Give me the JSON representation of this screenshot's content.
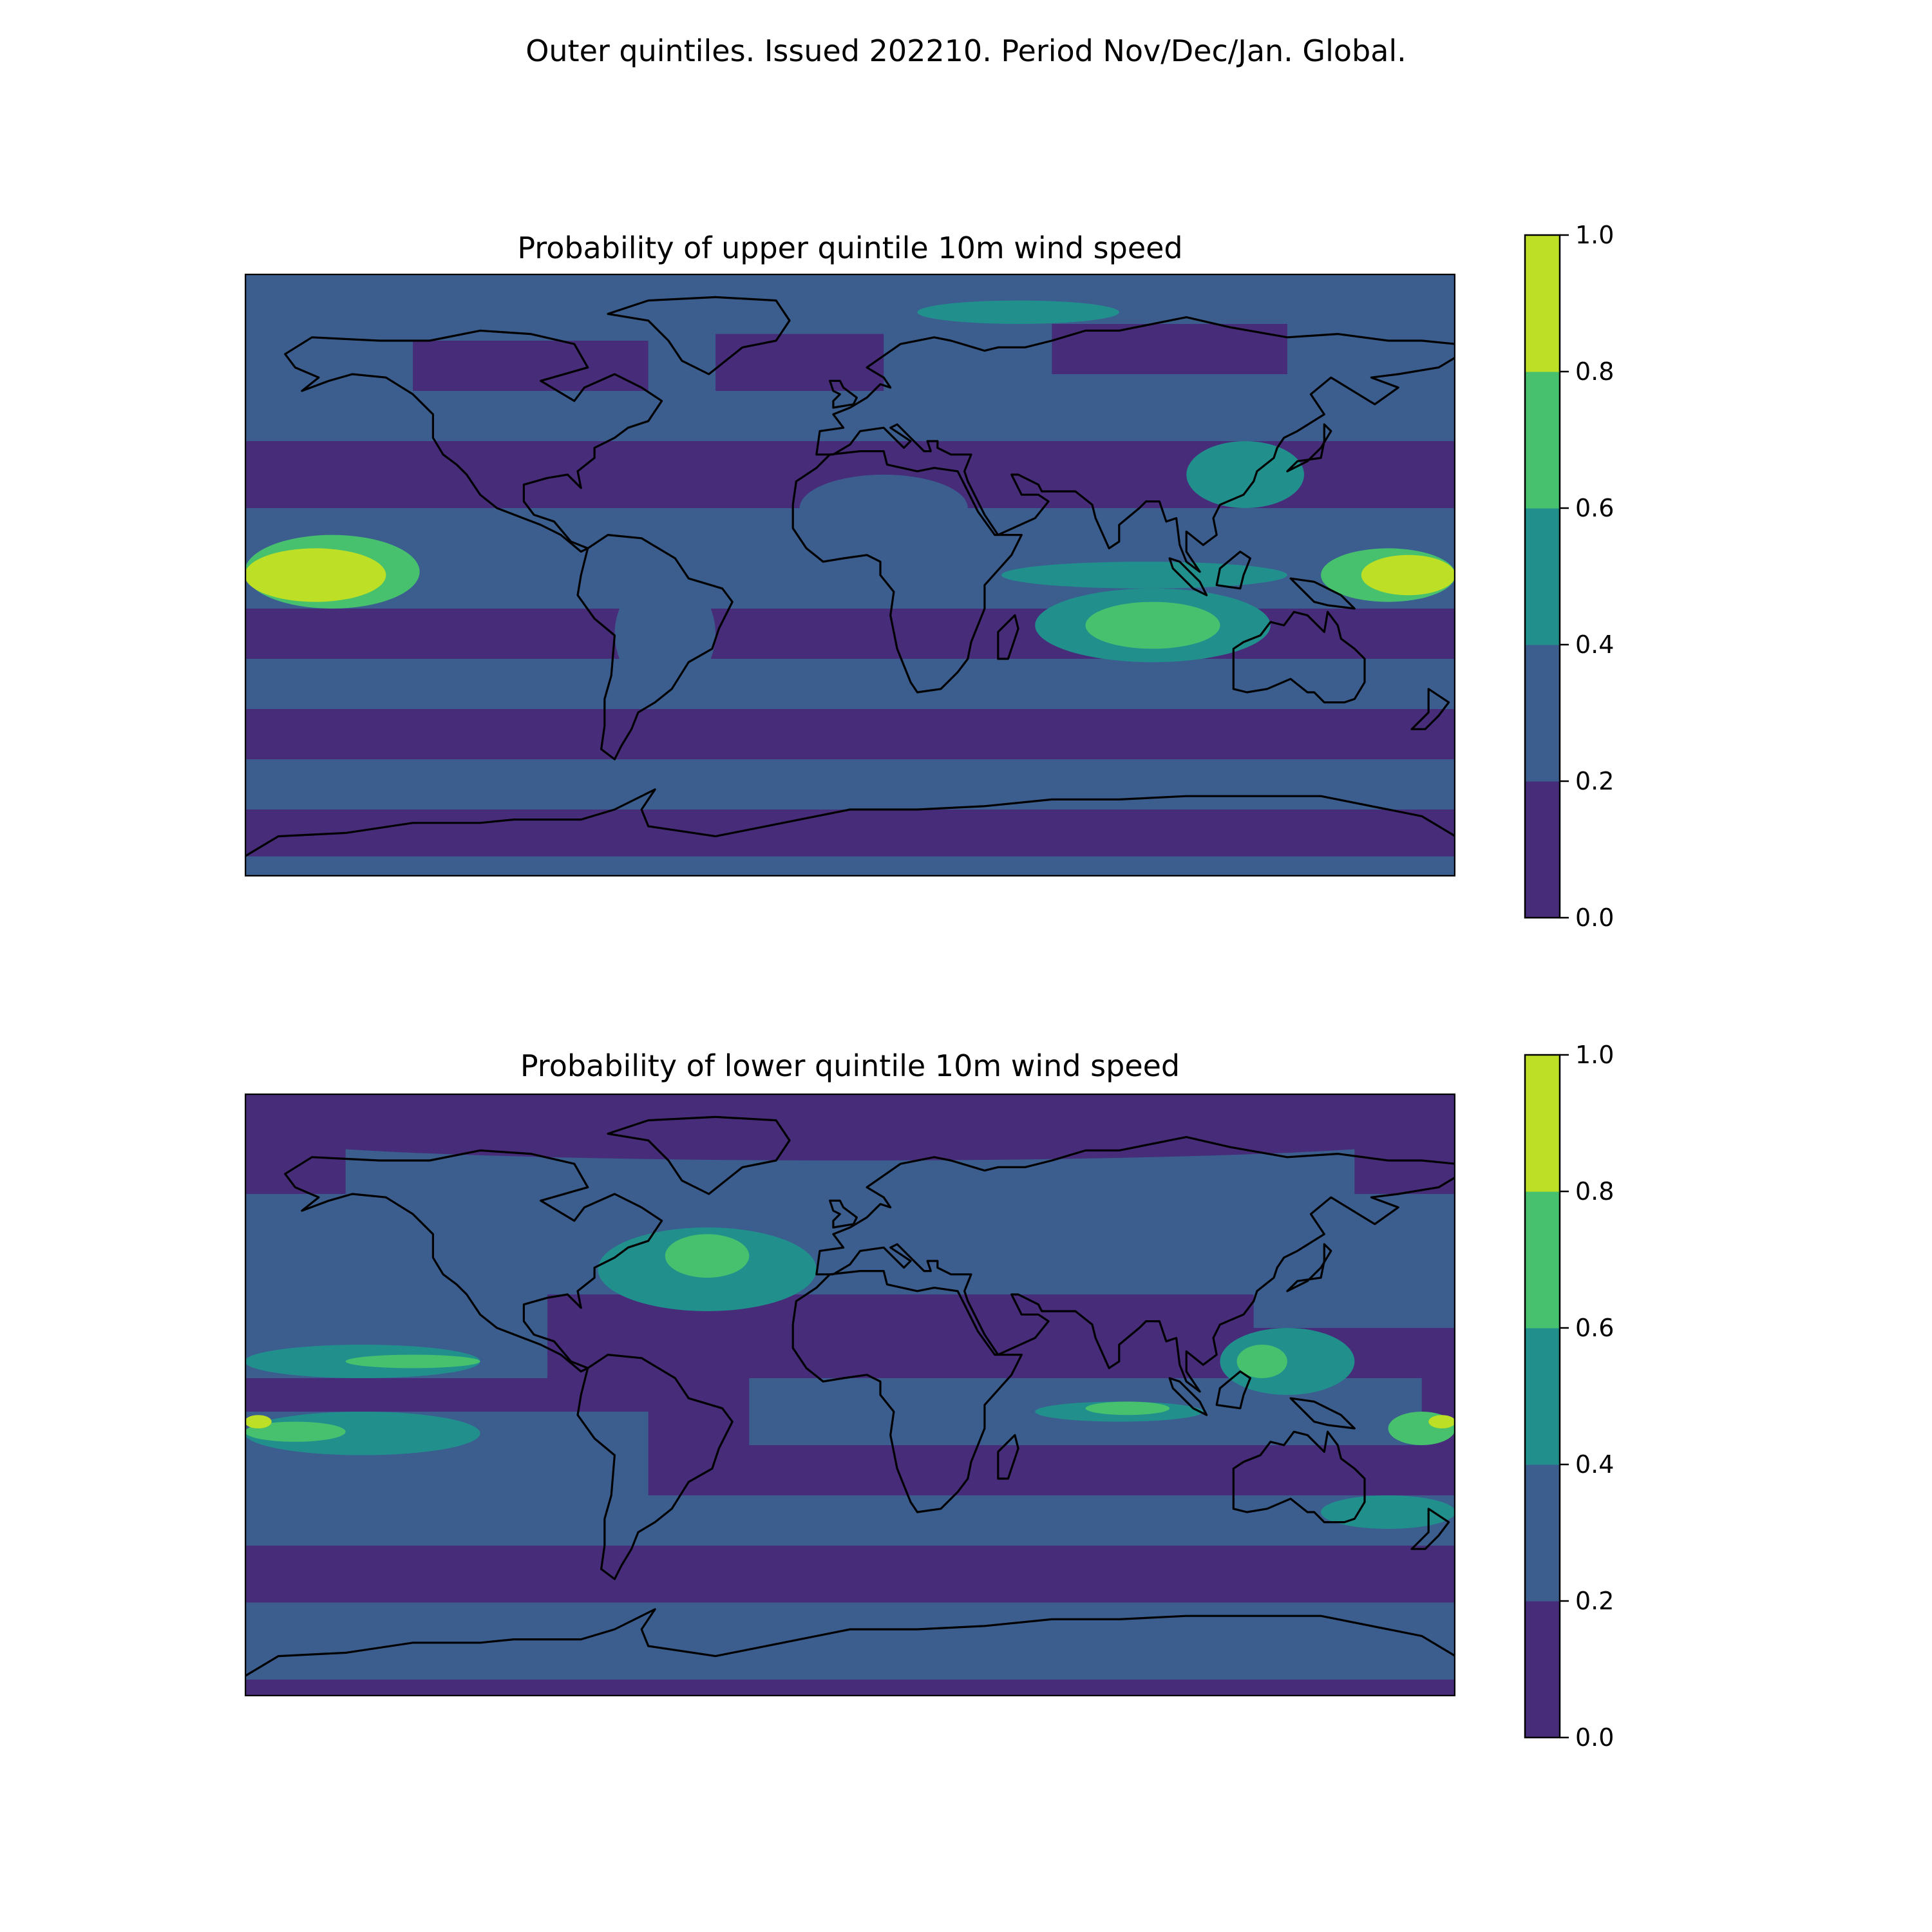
{
  "figure": {
    "suptitle": "Outer quintiles. Issued 202210. Period Nov/Dec/Jan. Global."
  },
  "colormap": {
    "name": "viridis",
    "levels": [
      0.0,
      0.2,
      0.4,
      0.6,
      0.8,
      1.0
    ],
    "colors": [
      "#472c7a",
      "#3b5e8f",
      "#21908d",
      "#47c16e",
      "#bddf26"
    ],
    "coastline_color": "#000000"
  },
  "panels": [
    {
      "id": "upper",
      "title": "Probability of upper quintile 10m wind speed",
      "colorbar_ticks": [
        "0.0",
        "0.2",
        "0.4",
        "0.6",
        "0.8",
        "1.0"
      ],
      "background_level": 1,
      "bands": [
        {
          "lat": [
            -90,
            -84
          ],
          "lon": [
            -180,
            180
          ],
          "level": 1
        },
        {
          "lat": [
            -84,
            -70
          ],
          "lon": [
            -180,
            180
          ],
          "level": 0
        },
        {
          "lat": [
            -70,
            -55
          ],
          "lon": [
            -180,
            180
          ],
          "level": 1
        },
        {
          "lat": [
            -55,
            -40
          ],
          "lon": [
            -180,
            180
          ],
          "level": 0
        },
        {
          "lat": [
            -40,
            -25
          ],
          "lon": [
            -180,
            180
          ],
          "level": 1
        },
        {
          "lat": [
            -25,
            -10
          ],
          "lon": [
            -180,
            180
          ],
          "level": 0
        },
        {
          "lat": [
            20,
            40
          ],
          "lon": [
            -180,
            180
          ],
          "level": 0
        },
        {
          "lat": [
            55,
            70
          ],
          "lon": [
            -130,
            -60
          ],
          "level": 0
        },
        {
          "lat": [
            55,
            72
          ],
          "lon": [
            -40,
            10
          ],
          "level": 0
        },
        {
          "lat": [
            60,
            75
          ],
          "lon": [
            60,
            130
          ],
          "level": 0
        }
      ],
      "features": [
        {
          "name": "central-pacific-max",
          "lat": [
            -8,
            8
          ],
          "lon": [
            -180,
            -138
          ],
          "level": 4
        },
        {
          "name": "central-pacific-ring",
          "lat": [
            -10,
            12
          ],
          "lon": [
            -180,
            -128
          ],
          "level": 3,
          "under": true
        },
        {
          "name": "west-pacific-max",
          "lat": [
            -6,
            6
          ],
          "lon": [
            152,
            180
          ],
          "level": 4
        },
        {
          "name": "west-pacific-ring",
          "lat": [
            -8,
            8
          ],
          "lon": [
            140,
            180
          ],
          "level": 3,
          "under": true
        },
        {
          "name": "indian-ocean-south",
          "lat": [
            -22,
            -8
          ],
          "lon": [
            70,
            110
          ],
          "level": 3
        },
        {
          "name": "indian-ocean-south-ring",
          "lat": [
            -26,
            -4
          ],
          "lon": [
            55,
            125
          ],
          "level": 2,
          "under": true
        },
        {
          "name": "indian-ocean-equatorial",
          "lat": [
            -4,
            4
          ],
          "lon": [
            45,
            130
          ],
          "level": 2
        },
        {
          "name": "east-asia",
          "lat": [
            20,
            40
          ],
          "lon": [
            100,
            135
          ],
          "level": 2
        },
        {
          "name": "north-africa",
          "lat": [
            10,
            30
          ],
          "lon": [
            -15,
            35
          ],
          "level": 1
        },
        {
          "name": "south-america",
          "lat": [
            -35,
            0
          ],
          "lon": [
            -70,
            -40
          ],
          "level": 1
        },
        {
          "name": "north-atlantic-arctic",
          "lat": [
            75,
            82
          ],
          "lon": [
            20,
            80
          ],
          "level": 2
        }
      ]
    },
    {
      "id": "lower",
      "title": "Probability of lower quintile 10m wind speed",
      "colorbar_ticks": [
        "0.0",
        "0.2",
        "0.4",
        "0.6",
        "0.8",
        "1.0"
      ],
      "background_level": 0,
      "bands": [
        {
          "lat": [
            -90,
            -85
          ],
          "lon": [
            -180,
            180
          ],
          "level": 0
        },
        {
          "lat": [
            -85,
            -62
          ],
          "lon": [
            -180,
            180
          ],
          "level": 1
        },
        {
          "lat": [
            -45,
            -30
          ],
          "lon": [
            -180,
            180
          ],
          "level": 1
        },
        {
          "lat": [
            -30,
            -5
          ],
          "lon": [
            -180,
            -60
          ],
          "level": 1
        },
        {
          "lat": [
            -15,
            5
          ],
          "lon": [
            -30,
            170
          ],
          "level": 1
        },
        {
          "lat": [
            5,
            35
          ],
          "lon": [
            -180,
            -90
          ],
          "level": 1
        },
        {
          "lat": [
            30,
            60
          ],
          "lon": [
            -180,
            180
          ],
          "level": 1
        },
        {
          "lat": [
            60,
            75
          ],
          "lon": [
            -150,
            150
          ],
          "level": 1
        },
        {
          "lat": [
            20,
            32
          ],
          "lon": [
            120,
            180
          ],
          "level": 1
        }
      ],
      "features": [
        {
          "name": "north-atlantic",
          "lat": [
            25,
            50
          ],
          "lon": [
            -75,
            -10
          ],
          "level": 2
        },
        {
          "name": "north-atlantic-core",
          "lat": [
            35,
            48
          ],
          "lon": [
            -55,
            -30
          ],
          "level": 3
        },
        {
          "name": "north-pacific-tropics",
          "lat": [
            5,
            15
          ],
          "lon": [
            -180,
            -110
          ],
          "level": 2
        },
        {
          "name": "north-pacific-core",
          "lat": [
            8,
            12
          ],
          "lon": [
            -150,
            -110
          ],
          "level": 3
        },
        {
          "name": "south-pacific-diagonal",
          "lat": [
            -18,
            -5
          ],
          "lon": [
            -180,
            -110
          ],
          "level": 2
        },
        {
          "name": "south-pacific-core",
          "lat": [
            -14,
            -8
          ],
          "lon": [
            -180,
            -150
          ],
          "level": 3
        },
        {
          "name": "south-pacific-max",
          "lat": [
            -10,
            -6
          ],
          "lon": [
            -180,
            -172
          ],
          "level": 4
        },
        {
          "name": "maritime-continent",
          "lat": [
            0,
            20
          ],
          "lon": [
            110,
            150
          ],
          "level": 2
        },
        {
          "name": "maritime-continent-core",
          "lat": [
            5,
            15
          ],
          "lon": [
            115,
            130
          ],
          "level": 3
        },
        {
          "name": "indian-ocean",
          "lat": [
            -8,
            -2
          ],
          "lon": [
            55,
            105
          ],
          "level": 2
        },
        {
          "name": "indian-ocean-core",
          "lat": [
            -6,
            -2
          ],
          "lon": [
            70,
            95
          ],
          "level": 3
        },
        {
          "name": "west-pacific-south",
          "lat": [
            -15,
            -5
          ],
          "lon": [
            160,
            180
          ],
          "level": 3
        },
        {
          "name": "west-pacific-south-max",
          "lat": [
            -10,
            -6
          ],
          "lon": [
            172,
            180
          ],
          "level": 4
        },
        {
          "name": "australia-south",
          "lat": [
            -40,
            -30
          ],
          "lon": [
            140,
            180
          ],
          "level": 2
        },
        {
          "name": "arctic",
          "lat": [
            70,
            85
          ],
          "lon": [
            -180,
            180
          ],
          "level": 0
        }
      ]
    }
  ]
}
